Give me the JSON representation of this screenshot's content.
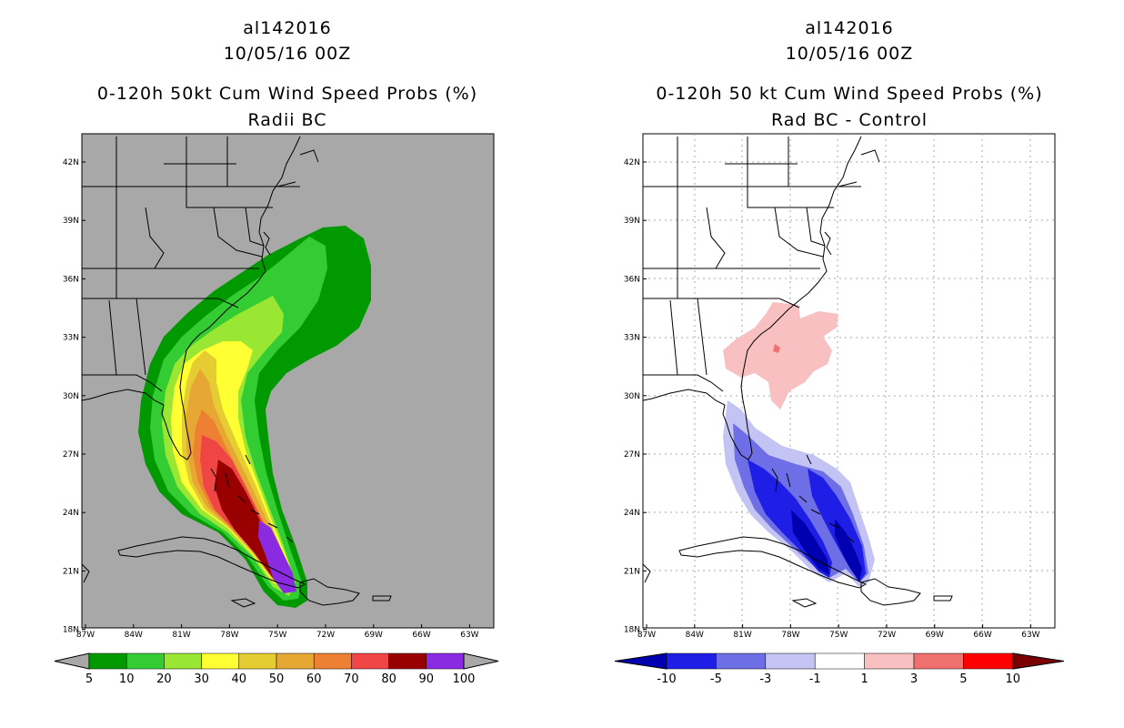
{
  "left_panel": {
    "storm_id": "al142016",
    "datetime": "10/05/16 00Z",
    "title": "0-120h 50kt Cum Wind Speed Probs (%)",
    "subtitle": "Radii BC",
    "colorbar_labels": [
      "5",
      "10",
      "20",
      "30",
      "40",
      "50",
      "60",
      "70",
      "80",
      "90",
      "100"
    ],
    "colorbar_colors": [
      "#009900",
      "#33cc33",
      "#99e633",
      "#ffff33",
      "#e6cc33",
      "#e6a833",
      "#ee8033",
      "#f04545",
      "#990000",
      "#8a2be2"
    ],
    "background": "#a8a8a8"
  },
  "right_panel": {
    "storm_id": "al142016",
    "datetime": "10/05/16 00Z",
    "title": "0-120h 50 kt Cum Wind Speed Probs (%)",
    "subtitle": "Rad BC - Control",
    "colorbar_labels": [
      "-10",
      "-5",
      "-3",
      "-1",
      "1",
      "3",
      "5",
      "10"
    ],
    "colorbar_colors": [
      "#0000b0",
      "#1e1ee6",
      "#6e6ee6",
      "#c4c4f4",
      "#ffffff",
      "#f8c0c0",
      "#f07070",
      "#ff0000",
      "#7a0000"
    ],
    "background": "#ffffff"
  },
  "axes": {
    "lat_ticks": [
      "42N",
      "39N",
      "36N",
      "33N",
      "30N",
      "27N",
      "24N",
      "21N",
      "18N"
    ],
    "lon_ticks": [
      "87W",
      "84W",
      "81W",
      "78W",
      "75W",
      "72W",
      "69W",
      "66W",
      "63W"
    ]
  }
}
